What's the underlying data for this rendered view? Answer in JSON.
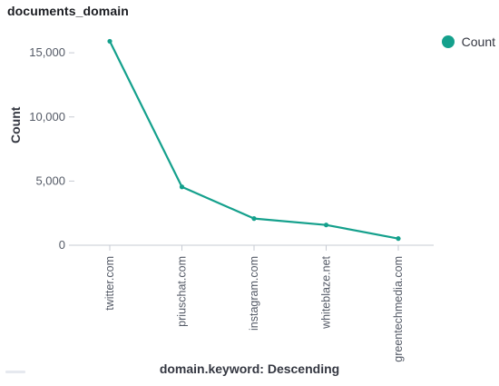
{
  "panel": {
    "title": "documents_domain"
  },
  "legend": {
    "label": "Count",
    "color": "#14a08c"
  },
  "chart_data": {
    "type": "line",
    "title": "documents_domain",
    "xlabel": "domain.keyword: Descending",
    "ylabel": "Count",
    "categories": [
      "twitter.com",
      "priuschat.com",
      "instagram.com",
      "whiteblaze.net",
      "greentechmedia.com"
    ],
    "series": [
      {
        "name": "Count",
        "values": [
          15900,
          4550,
          2080,
          1580,
          520
        ]
      }
    ],
    "yticks": [
      0,
      5000,
      10000,
      15000
    ],
    "ytick_labels": [
      "0",
      "5,000",
      "10,000",
      "15,000"
    ],
    "ylim": [
      0,
      16000
    ],
    "grid": false,
    "legend_position": "top-right",
    "color": "#14a08c"
  }
}
